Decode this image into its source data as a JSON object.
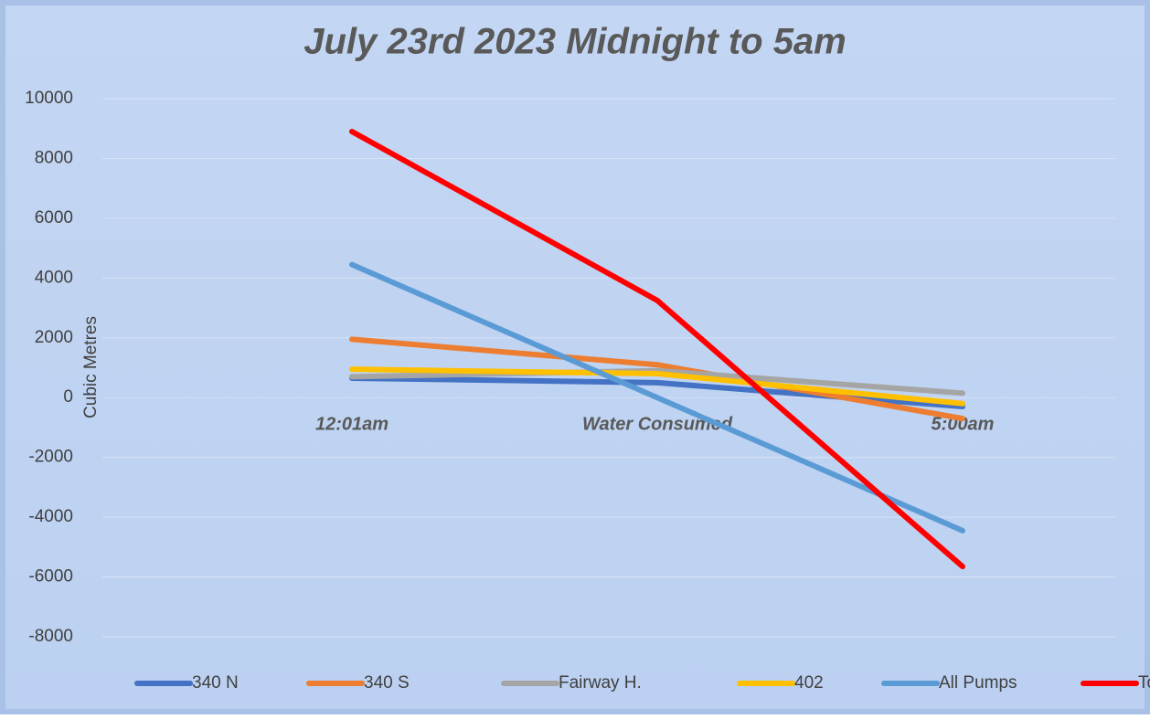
{
  "chart_data": {
    "type": "line",
    "title": "July 23rd 2023 Midnight to 5am",
    "y_label": "Cubic Metres",
    "categories": [
      "12:01am",
      "Water Consumed",
      "5:00am"
    ],
    "series": [
      {
        "name": "340 N",
        "color": "#4472c4",
        "values": [
          650,
          500,
          -300
        ]
      },
      {
        "name": "340 S",
        "color": "#ed7d31",
        "values": [
          1950,
          1100,
          -700
        ]
      },
      {
        "name": "Fairway H.",
        "color": "#a5a5a5",
        "values": [
          700,
          900,
          150
        ]
      },
      {
        "name": "402",
        "color": "#ffc000",
        "values": [
          950,
          800,
          -200
        ]
      },
      {
        "name": "All Pumps",
        "color": "#5b9bd5",
        "values": [
          4450,
          0,
          -4450
        ]
      },
      {
        "name": "Totals",
        "color": "#ff0000",
        "values": [
          8900,
          3250,
          -5650
        ]
      }
    ],
    "ylim": [
      -8000,
      10000
    ],
    "yticks": [
      -8000,
      -6000,
      -4000,
      -2000,
      0,
      2000,
      4000,
      6000,
      8000,
      10000
    ],
    "grid": true,
    "legend": "bottom"
  }
}
